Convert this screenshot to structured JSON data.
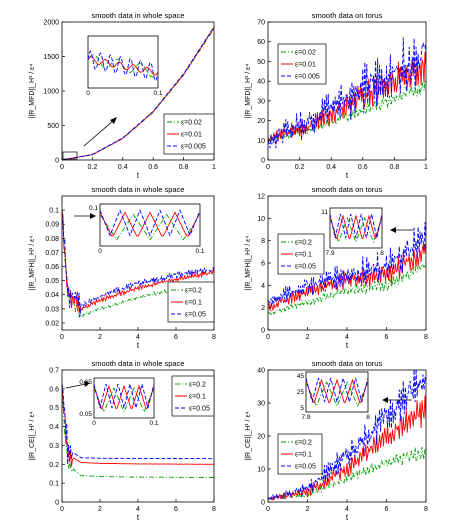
{
  "chart_data": [
    {
      "type": "line",
      "title": "smooth data in whole space",
      "xlabel": "t",
      "ylabel": "||R_MFD||_H¹ / ε⁴",
      "xlim": [
        0,
        1
      ],
      "ylim": [
        0,
        2000
      ],
      "xticks": [
        "0",
        "0.2",
        "0.4",
        "0.6",
        "0.8",
        "1"
      ],
      "yticks": [
        "0",
        "500",
        "1000",
        "1500",
        "2000"
      ],
      "legend": "bottom-right",
      "series": [
        {
          "name": "ε=0.02",
          "color": "#00a000",
          "dash": "dashdot",
          "x": [
            0,
            0.2,
            0.4,
            0.6,
            0.8,
            1.0
          ],
          "y": [
            0,
            75,
            310,
            690,
            1230,
            1900
          ]
        },
        {
          "name": "ε=0.01",
          "color": "#ff0000",
          "dash": "solid",
          "x": [
            0,
            0.2,
            0.4,
            0.6,
            0.8,
            1.0
          ],
          "y": [
            0,
            78,
            315,
            700,
            1240,
            1920
          ]
        },
        {
          "name": "ε=0.005",
          "color": "#0000ff",
          "dash": "dashed",
          "x": [
            0,
            0.2,
            0.4,
            0.6,
            0.8,
            1.0
          ],
          "y": [
            0,
            80,
            320,
            705,
            1250,
            1930
          ]
        }
      ],
      "inset": {
        "xticks": [
          "0",
          "0.1"
        ]
      }
    },
    {
      "type": "line",
      "title": "smooth data on torus",
      "xlabel": "t",
      "ylabel": "||R_MFD||_H¹ / ε⁴",
      "xlim": [
        0,
        1
      ],
      "ylim": [
        0,
        70
      ],
      "xticks": [
        "0",
        "0.2",
        "0.4",
        "0.6",
        "0.8",
        "1"
      ],
      "yticks": [
        "0",
        "10",
        "20",
        "30",
        "40",
        "50",
        "60",
        "70"
      ],
      "legend": "top-left",
      "series": [
        {
          "name": "ε=0.02",
          "color": "#00a000",
          "dash": "dashdot",
          "x": [
            0,
            0.25,
            0.5,
            0.75,
            1.0
          ],
          "y": [
            10,
            15,
            22,
            30,
            38
          ]
        },
        {
          "name": "ε=0.01",
          "color": "#ff0000",
          "dash": "solid",
          "x": [
            0,
            0.25,
            0.5,
            0.75,
            1.0
          ],
          "y": [
            10,
            17,
            28,
            38,
            48
          ]
        },
        {
          "name": "ε=0.005",
          "color": "#0000ff",
          "dash": "dashed",
          "x": [
            0,
            0.25,
            0.5,
            0.75,
            1.0
          ],
          "y": [
            10,
            20,
            32,
            42,
            55
          ]
        }
      ]
    },
    {
      "type": "line",
      "title": "smooth data in whole space",
      "xlabel": "t",
      "ylabel": "||R_MFH||_H¹ / ε⁴",
      "xlim": [
        0,
        8
      ],
      "ylim": [
        0.015,
        0.11
      ],
      "xticks": [
        "0",
        "2",
        "4",
        "6",
        "8"
      ],
      "yticks": [
        "0.02",
        "0.03",
        "0.04",
        "0.05",
        "0.06",
        "0.07",
        "0.08",
        "0.09",
        "0.1"
      ],
      "legend": "bottom-right",
      "series": [
        {
          "name": "ε=0.2",
          "color": "#00a000",
          "dash": "dashdot",
          "x": [
            0,
            0.3,
            1,
            2,
            4,
            6,
            8
          ],
          "y": [
            0.1,
            0.04,
            0.025,
            0.03,
            0.038,
            0.044,
            0.048
          ]
        },
        {
          "name": "ε=0.1",
          "color": "#ff0000",
          "dash": "solid",
          "x": [
            0,
            0.3,
            1,
            2,
            4,
            6,
            8
          ],
          "y": [
            0.1,
            0.04,
            0.03,
            0.036,
            0.045,
            0.051,
            0.056
          ]
        },
        {
          "name": "ε=0.05",
          "color": "#0000ff",
          "dash": "dashed",
          "x": [
            0,
            0.3,
            1,
            2,
            4,
            6,
            8
          ],
          "y": [
            0.1,
            0.042,
            0.032,
            0.039,
            0.048,
            0.054,
            0.058
          ]
        }
      ],
      "inset": {
        "xticks": [
          "0",
          "0.1"
        ],
        "yticks": [
          "0.1"
        ]
      }
    },
    {
      "type": "line",
      "title": "smooth data on torus",
      "xlabel": "t",
      "ylabel": "||R_MFH||_H¹ / ε⁴",
      "xlim": [
        0,
        8
      ],
      "ylim": [
        0,
        12
      ],
      "xticks": [
        "0",
        "2",
        "4",
        "6",
        "8"
      ],
      "yticks": [
        "0",
        "2",
        "4",
        "6",
        "8",
        "10",
        "12"
      ],
      "legend": "top-left",
      "series": [
        {
          "name": "ε=0.2",
          "color": "#00a000",
          "dash": "dashdot",
          "x": [
            0,
            2,
            4,
            6,
            8
          ],
          "y": [
            1.5,
            2.5,
            3.5,
            4,
            6
          ]
        },
        {
          "name": "ε=0.1",
          "color": "#ff0000",
          "dash": "solid",
          "x": [
            0,
            2,
            4,
            6,
            8
          ],
          "y": [
            2,
            3.5,
            4.5,
            5,
            7
          ]
        },
        {
          "name": "ε=0.05",
          "color": "#0000ff",
          "dash": "dashed",
          "x": [
            0,
            2,
            4,
            6,
            8
          ],
          "y": [
            2.5,
            4,
            5,
            5.5,
            8.5
          ]
        }
      ],
      "inset": {
        "xticks": [
          "7.9",
          "8"
        ],
        "yticks": [
          "11"
        ]
      }
    },
    {
      "type": "line",
      "title": "smooth data in whole space",
      "xlabel": "t",
      "ylabel": "||R_CE||_H¹ / ε⁴",
      "xlim": [
        0,
        8
      ],
      "ylim": [
        0,
        0.7
      ],
      "xticks": [
        "0",
        "2",
        "4",
        "6",
        "8"
      ],
      "yticks": [
        "0",
        "0.1",
        "0.2",
        "0.3",
        "0.4",
        "0.5",
        "0.6",
        "0.7"
      ],
      "legend": "top-right",
      "series": [
        {
          "name": "ε=0.2",
          "color": "#00a000",
          "dash": "dashdot",
          "x": [
            0,
            0.3,
            1,
            2,
            4,
            8
          ],
          "y": [
            0.55,
            0.2,
            0.14,
            0.135,
            0.132,
            0.13
          ]
        },
        {
          "name": "ε=0.1",
          "color": "#ff0000",
          "dash": "solid",
          "x": [
            0,
            0.3,
            1,
            2,
            4,
            8
          ],
          "y": [
            0.6,
            0.25,
            0.21,
            0.205,
            0.202,
            0.2
          ]
        },
        {
          "name": "ε=0.05",
          "color": "#0000ff",
          "dash": "dashed",
          "x": [
            0,
            0.3,
            1,
            2,
            4,
            8
          ],
          "y": [
            0.65,
            0.28,
            0.235,
            0.232,
            0.231,
            0.23
          ]
        }
      ],
      "inset": {
        "xticks": [
          "0",
          "0.1"
        ],
        "yticks": [
          "0.65",
          "0.05"
        ]
      }
    },
    {
      "type": "line",
      "title": "smooth data on torus",
      "xlabel": "t",
      "ylabel": "||R_CE||_H¹ / ε⁴",
      "xlim": [
        0,
        8
      ],
      "ylim": [
        0,
        40
      ],
      "xticks": [
        "0",
        "2",
        "4",
        "6",
        "8"
      ],
      "yticks": [
        "0",
        "10",
        "20",
        "30",
        "40"
      ],
      "legend": "bottom-left",
      "series": [
        {
          "name": "ε=0.2",
          "color": "#00a000",
          "dash": "dashdot",
          "x": [
            0,
            2,
            4,
            6,
            8
          ],
          "y": [
            1,
            2,
            7,
            12,
            15
          ]
        },
        {
          "name": "ε=0.1",
          "color": "#ff0000",
          "dash": "solid",
          "x": [
            0,
            2,
            4,
            6,
            8
          ],
          "y": [
            1,
            3,
            10,
            20,
            28
          ]
        },
        {
          "name": "ε=0.05",
          "color": "#0000ff",
          "dash": "dashed",
          "x": [
            0,
            2,
            4,
            6,
            8
          ],
          "y": [
            1,
            4,
            14,
            26,
            38
          ]
        }
      ],
      "inset": {
        "xticks": [
          "7.9",
          "8"
        ],
        "yticks": [
          "45",
          "25",
          "5"
        ]
      }
    }
  ]
}
